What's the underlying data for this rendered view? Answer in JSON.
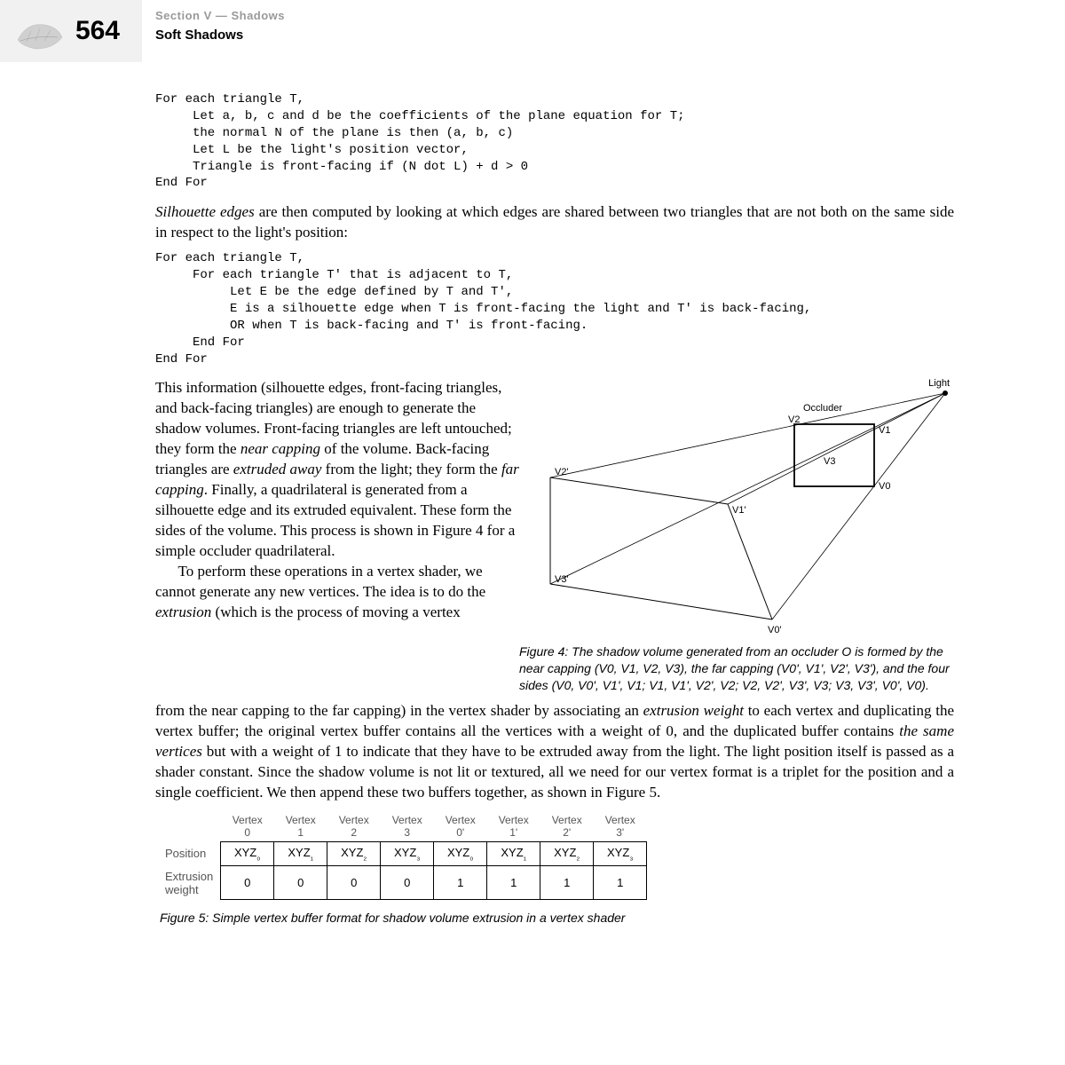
{
  "page_number": "564",
  "section": "Section V — Shadows",
  "subsection": "Soft Shadows",
  "code_block1": "For each triangle T,\n     Let a, b, c and d be the coefficients of the plane equation for T;\n     the normal N of the plane is then (a, b, c)\n     Let L be the light's position vector,\n     Triangle is front-facing if (N dot L) + d > 0\nEnd For",
  "paragraph1_pre": "Silhouette edges",
  "paragraph1_post": " are then computed by looking at which edges are shared between two triangles that are not both on the same side in respect to the light's position:",
  "code_block2": "For each triangle T,\n     For each triangle T' that is adjacent to T,\n          Let E be the edge defined by T and T',\n          E is a silhouette edge when T is front-facing the light and T' is back-facing,\n          OR when T is back-facing and T' is front-facing.\n     End For\nEnd For",
  "paragraph2_html": "This information (silhouette edges, front-facing triangles, and back-facing triangles) are enough to generate the shadow volumes. Front-facing triangles are left untouched; they form the <i>near capping</i> of the volume. Back-facing triangles are <i>extruded away</i> from the light; they form the <i>far capping</i>. Finally, a quadrilateral is generated from a silhouette edge and its extruded equivalent. These form the sides of the volume. This process is shown in Figure 4 for a simple occluder quadrilateral.<br>&nbsp;&nbsp;&nbsp;&nbsp;&nbsp;&nbsp;To perform these operations in a vertex shader, we cannot generate any new vertices. The idea is to do the <i>extrusion</i> (which is the process of moving a vertex",
  "figure4_caption": "Figure 4: The shadow volume generated from an occluder O is formed by the near capping (V0, V1, V2, V3), the far capping (V0', V1', V2', V3'), and the four sides (V0, V0', V1', V1; V1, V1', V2', V2; V2, V2', V3', V3; V3, V3', V0', V0).",
  "paragraph3_html": "from the near capping to the far capping) in the vertex shader by associating an <i>extrusion weight</i> to each vertex and duplicating the vertex buffer; the original vertex buffer contains all the vertices with a weight of 0, and the duplicated buffer contains <i>the same vertices</i> but with a weight of 1 to indicate that they have to be extruded away from the light. The light position itself is passed as a shader constant. Since the shadow volume is not lit or textured, all we need for our vertex format is a triplet for the position and a single coefficient. We then append these two buffers together, as shown in Figure 5.",
  "table": {
    "headers": [
      "Vertex 0",
      "Vertex 1",
      "Vertex 2",
      "Vertex 3",
      "Vertex 0'",
      "Vertex 1'",
      "Vertex 2'",
      "Vertex 3'"
    ],
    "rows": [
      {
        "label": "Position",
        "cells": [
          "XYZ₀",
          "XYZ₁",
          "XYZ₂",
          "XYZ₃",
          "XYZ₀",
          "XYZ₁",
          "XYZ₂",
          "XYZ₃"
        ]
      },
      {
        "label": "Extrusion weight",
        "cells": [
          "0",
          "0",
          "0",
          "0",
          "1",
          "1",
          "1",
          "1"
        ]
      }
    ]
  },
  "figure5_caption": "Figure 5: Simple vertex buffer format for shadow volume extrusion in a vertex shader",
  "diagram": {
    "labels": {
      "light": "Light",
      "occluder": "Occluder",
      "v0": "V0",
      "v1": "V1",
      "v2": "V2",
      "v3": "V3",
      "v0p": "V0'",
      "v1p": "V1'",
      "v2p": "V2'",
      "v3p": "V3'"
    },
    "colors": {
      "stroke": "#000000",
      "occluder_stroke": "#000000",
      "text": "#000000"
    }
  }
}
